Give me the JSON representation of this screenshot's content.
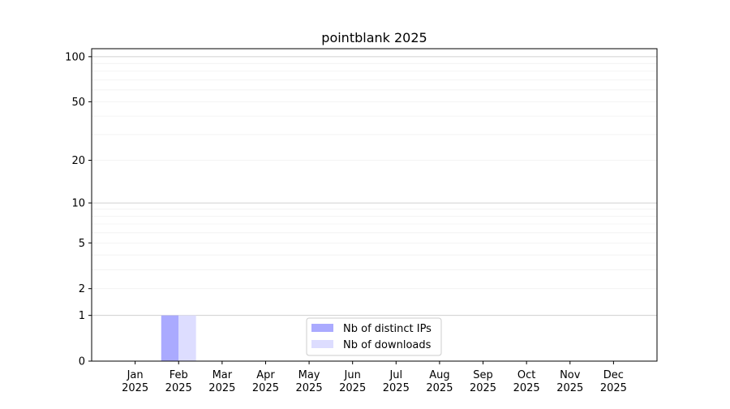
{
  "chart_data": {
    "type": "bar",
    "title": "pointblank 2025",
    "xlabel": "",
    "ylabel": "",
    "categories": [
      "Jan\n2025",
      "Feb\n2025",
      "Mar\n2025",
      "Apr\n2025",
      "May\n2025",
      "Jun\n2025",
      "Jul\n2025",
      "Aug\n2025",
      "Sep\n2025",
      "Oct\n2025",
      "Nov\n2025",
      "Dec\n2025"
    ],
    "series": [
      {
        "name": "Nb of distinct IPs",
        "color": "#aaaaff",
        "values": [
          0,
          1,
          0,
          0,
          0,
          0,
          0,
          0,
          0,
          0,
          0,
          0
        ]
      },
      {
        "name": "Nb of downloads",
        "color": "#ddddff",
        "values": [
          0,
          1,
          0,
          0,
          0,
          0,
          0,
          0,
          0,
          0,
          0,
          0
        ]
      }
    ],
    "yscale": "log(y+1)",
    "yticks": [
      0,
      1,
      2,
      5,
      10,
      20,
      50,
      100
    ],
    "ylim": [
      0,
      113
    ],
    "grid": true,
    "legend_position": "lower center"
  }
}
